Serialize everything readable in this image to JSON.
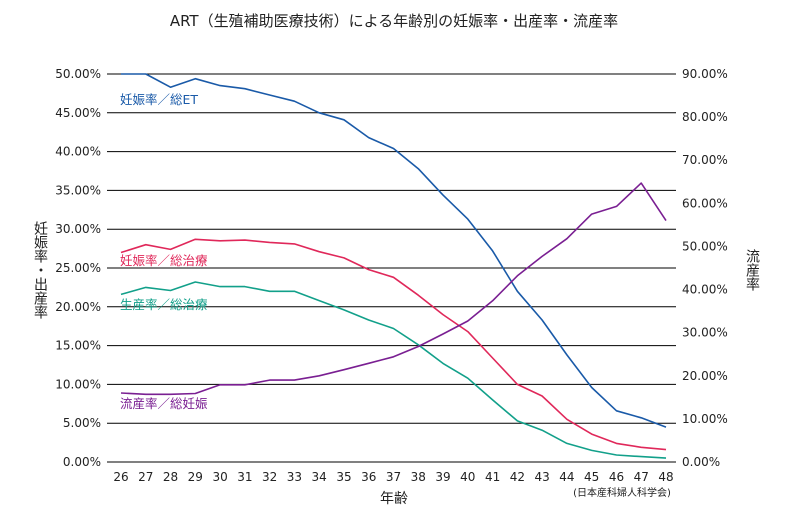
{
  "chart_data": {
    "type": "line",
    "title": "ART（生殖補助医療技術）による年齢別の妊娠率・出産率・流産率",
    "xlabel": "年齢",
    "ylabel_left": "妊娠率・出産率",
    "ylabel_right": "流産率",
    "source": "(日本産科婦人科学会)",
    "categories": [
      "26",
      "27",
      "28",
      "29",
      "30",
      "31",
      "32",
      "33",
      "34",
      "35",
      "36",
      "37",
      "38",
      "39",
      "40",
      "41",
      "42",
      "43",
      "44",
      "45",
      "46",
      "47",
      "48"
    ],
    "left_axis": {
      "ylim": [
        0,
        50
      ],
      "ticks": [
        0,
        5,
        10,
        15,
        20,
        25,
        30,
        35,
        40,
        45,
        50
      ],
      "tick_labels": [
        "0.00%",
        "5.00%",
        "10.00%",
        "15.00%",
        "20.00%",
        "25.00%",
        "30.00%",
        "35.00%",
        "40.00%",
        "45.00%",
        "50.00%"
      ]
    },
    "right_axis": {
      "ylim": [
        0,
        90
      ],
      "ticks": [
        0,
        10,
        20,
        30,
        40,
        50,
        60,
        70,
        80,
        90
      ],
      "tick_labels": [
        "0.00%",
        "10.00%",
        "20.00%",
        "30.00%",
        "40.00%",
        "50.00%",
        "60.00%",
        "70.00%",
        "80.00%",
        "90.00%"
      ]
    },
    "grid": true,
    "series": [
      {
        "name": "妊娠率／総ET",
        "axis": "left",
        "color": "#1a5aa8",
        "values": [
          50.0,
          50.0,
          48.3,
          49.4,
          48.5,
          48.1,
          47.3,
          46.5,
          45.0,
          44.1,
          41.8,
          40.4,
          37.8,
          34.4,
          31.3,
          27.2,
          22.0,
          18.3,
          13.8,
          9.6,
          6.6,
          5.7,
          4.5
        ]
      },
      {
        "name": "妊娠率／総治療",
        "axis": "left",
        "color": "#e0285a",
        "values": [
          27.0,
          28.0,
          27.4,
          28.7,
          28.5,
          28.6,
          28.3,
          28.1,
          27.1,
          26.3,
          24.8,
          23.8,
          21.5,
          19.0,
          16.8,
          13.4,
          10.0,
          8.5,
          5.5,
          3.6,
          2.4,
          1.9,
          1.6
        ]
      },
      {
        "name": "生産率／総治療",
        "axis": "left",
        "color": "#12a08a",
        "values": [
          21.6,
          22.5,
          22.1,
          23.2,
          22.6,
          22.6,
          22.0,
          22.0,
          20.8,
          19.6,
          18.3,
          17.2,
          15.1,
          12.7,
          10.8,
          8.0,
          5.3,
          4.1,
          2.4,
          1.5,
          0.9,
          0.7,
          0.5
        ]
      },
      {
        "name": "流産率／総妊娠",
        "axis": "right",
        "color": "#7a1f92",
        "values": [
          16.0,
          15.7,
          15.7,
          15.9,
          17.9,
          17.9,
          19.0,
          19.0,
          20.0,
          21.4,
          22.9,
          24.4,
          26.8,
          29.7,
          32.7,
          37.4,
          43.2,
          47.7,
          51.8,
          57.5,
          59.3,
          64.7,
          56.0
        ]
      }
    ]
  }
}
